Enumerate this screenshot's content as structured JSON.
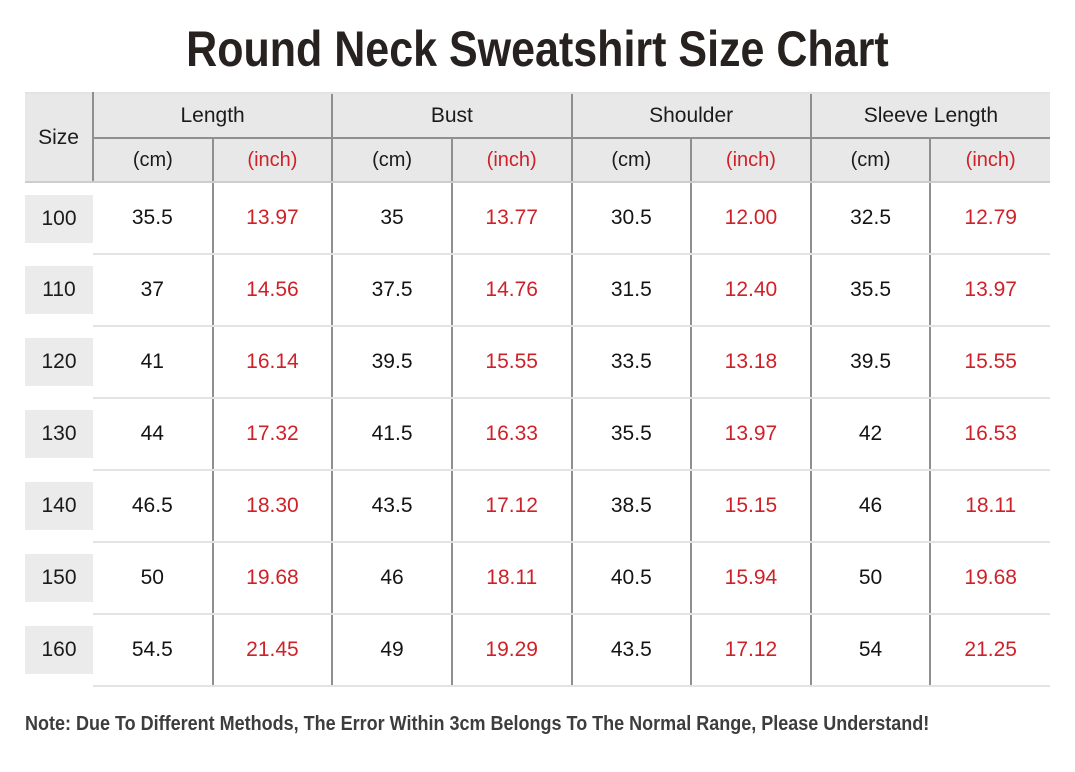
{
  "page": {
    "note": "Note: Due To Different Methods, The Error Within 3cm Belongs To The Normal Range, Please Understand!"
  },
  "colors": {
    "inch_accent_red": "#cf2128",
    "header_background": "#e8e8e8",
    "size_block_background": "#ebebeb",
    "grid_line_dark": "#8f8f8f",
    "grid_line_light": "#e3e3e3",
    "title_text": "#272220",
    "note_text": "#3d3d3d"
  },
  "chart_data": {
    "type": "table",
    "title": "Round Neck Sweatshirt Size Chart",
    "header": {
      "size": "Size",
      "groups": [
        {
          "label": "Length"
        },
        {
          "label": "Bust"
        },
        {
          "label": "Shoulder"
        },
        {
          "label": "Sleeve Length"
        }
      ],
      "unit_cm": "(cm)",
      "unit_inch": "(inch)"
    },
    "rows": [
      {
        "size": "100",
        "length_cm": "35.5",
        "length_in": "13.97",
        "bust_cm": "35",
        "bust_in": "13.77",
        "shoulder_cm": "30.5",
        "shoulder_in": "12.00",
        "sleeve_cm": "32.5",
        "sleeve_in": "12.79"
      },
      {
        "size": "110",
        "length_cm": "37",
        "length_in": "14.56",
        "bust_cm": "37.5",
        "bust_in": "14.76",
        "shoulder_cm": "31.5",
        "shoulder_in": "12.40",
        "sleeve_cm": "35.5",
        "sleeve_in": "13.97"
      },
      {
        "size": "120",
        "length_cm": "41",
        "length_in": "16.14",
        "bust_cm": "39.5",
        "bust_in": "15.55",
        "shoulder_cm": "33.5",
        "shoulder_in": "13.18",
        "sleeve_cm": "39.5",
        "sleeve_in": "15.55"
      },
      {
        "size": "130",
        "length_cm": "44",
        "length_in": "17.32",
        "bust_cm": "41.5",
        "bust_in": "16.33",
        "shoulder_cm": "35.5",
        "shoulder_in": "13.97",
        "sleeve_cm": "42",
        "sleeve_in": "16.53"
      },
      {
        "size": "140",
        "length_cm": "46.5",
        "length_in": "18.30",
        "bust_cm": "43.5",
        "bust_in": "17.12",
        "shoulder_cm": "38.5",
        "shoulder_in": "15.15",
        "sleeve_cm": "46",
        "sleeve_in": "18.11"
      },
      {
        "size": "150",
        "length_cm": "50",
        "length_in": "19.68",
        "bust_cm": "46",
        "bust_in": "18.11",
        "shoulder_cm": "40.5",
        "shoulder_in": "15.94",
        "sleeve_cm": "50",
        "sleeve_in": "19.68"
      },
      {
        "size": "160",
        "length_cm": "54.5",
        "length_in": "21.45",
        "bust_cm": "49",
        "bust_in": "19.29",
        "shoulder_cm": "43.5",
        "shoulder_in": "17.12",
        "sleeve_cm": "54",
        "sleeve_in": "21.25"
      }
    ]
  }
}
